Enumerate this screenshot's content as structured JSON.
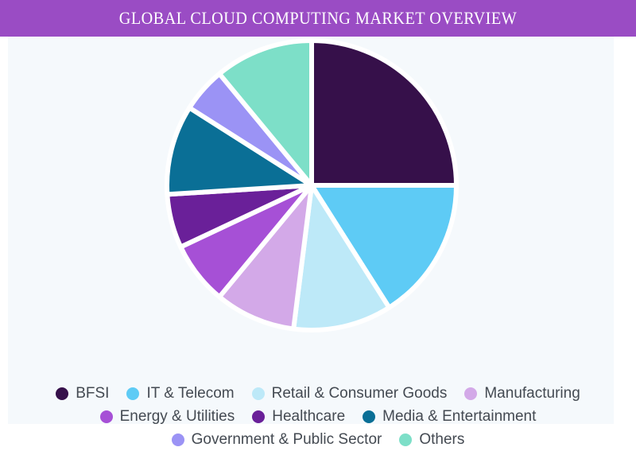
{
  "header": {
    "title": "GLOBAL CLOUD COMPUTING MARKET OVERVIEW"
  },
  "chart_data": {
    "type": "pie",
    "title": "GLOBAL CLOUD COMPUTING MARKET OVERVIEW",
    "categories": [
      "BFSI",
      "IT & Telecom",
      "Retail & Consumer Goods",
      "Manufacturing",
      "Energy & Utilities",
      "Healthcare",
      "Media & Entertainment",
      "Government & Public Sector",
      "Others"
    ],
    "values": [
      25,
      16,
      11,
      9,
      7,
      6,
      10,
      5,
      11
    ],
    "colors": [
      "#36104a",
      "#5ecbf5",
      "#bde9f8",
      "#d3a9e8",
      "#a650d6",
      "#6a2099",
      "#0a6f96",
      "#9b93f5",
      "#7ddfc8"
    ],
    "unit": "% share (estimated)",
    "legend_position": "bottom",
    "start_angle": "12 o'clock, clockwise"
  },
  "legend": {
    "rows": [
      [
        0,
        1,
        2,
        3
      ],
      [
        4,
        5,
        6
      ],
      [
        7,
        8
      ]
    ]
  }
}
